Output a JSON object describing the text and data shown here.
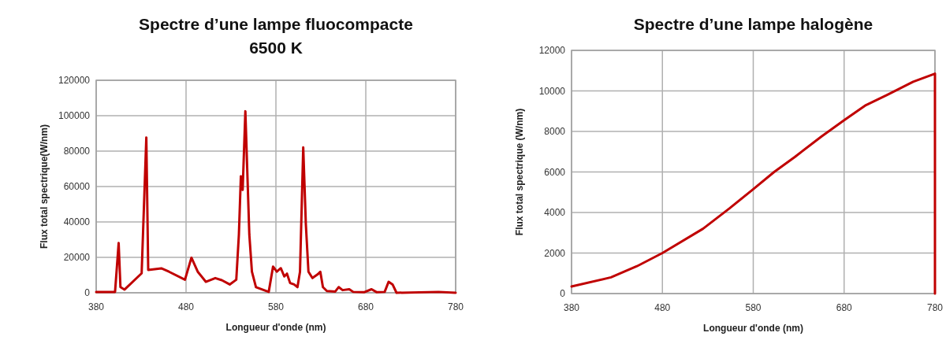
{
  "chart_data": [
    {
      "type": "line",
      "title": "Spectre d’une lampe fluocompacte\n6500 K",
      "xlabel": "Longueur d'onde (nm)",
      "ylabel": "Flux total spectrique(W/nm)",
      "xlim": [
        380,
        780
      ],
      "xticks": [
        380,
        480,
        580,
        680,
        780
      ],
      "ylim": [
        0,
        120000
      ],
      "yticks": [
        0,
        20000,
        40000,
        60000,
        80000,
        100000,
        120000
      ],
      "grid": true,
      "series": [
        {
          "color": "#c00000",
          "x": [
            380,
            401,
            405,
            407,
            411.6,
            430.6,
            435.8,
            437.9,
            452.5,
            461,
            478.8,
            486,
            493,
            502,
            512.5,
            519.8,
            528.6,
            535.9,
            538.8,
            541,
            543,
            546,
            550.4,
            553.3,
            557.8,
            572,
            576.8,
            581,
            585.5,
            589.3,
            592.3,
            595.8,
            600.2,
            604,
            606.8,
            610.4,
            613.3,
            616.2,
            620.6,
            626.5,
            629.4,
            632.3,
            636.7,
            646,
            649.8,
            654.2,
            661.6,
            666,
            678,
            686.4,
            692.3,
            701,
            705.4,
            709.8,
            714.2,
            761,
            780
          ],
          "values": [
            500,
            500,
            28100,
            3200,
            1800,
            11000,
            87700,
            12900,
            13800,
            11900,
            7400,
            19800,
            11900,
            6200,
            8300,
            7100,
            4700,
            7400,
            32900,
            65800,
            58100,
            102500,
            32900,
            11900,
            3200,
            500,
            14800,
            11900,
            13900,
            9200,
            10800,
            5500,
            4700,
            3200,
            11900,
            82100,
            38800,
            11900,
            8300,
            10400,
            11900,
            3200,
            1000,
            700,
            3200,
            1500,
            2000,
            500,
            300,
            2000,
            300,
            500,
            6200,
            4700,
            0,
            500,
            0
          ]
        }
      ]
    },
    {
      "type": "line",
      "title": "Spectre d’une lampe halogène",
      "xlabel": "Longueur d'onde (nm)",
      "ylabel": "Flux total spectrique (W/nm)",
      "xlim": [
        380,
        780
      ],
      "xticks": [
        380,
        480,
        580,
        680,
        780
      ],
      "ylim": [
        0,
        12000
      ],
      "yticks": [
        0,
        2000,
        4000,
        6000,
        8000,
        10000,
        12000
      ],
      "grid": true,
      "series": [
        {
          "color": "#c00000",
          "x": [
            380,
            423.4,
            452,
            480,
            524.7,
            553.7,
            580,
            603,
            626,
            655,
            680,
            704,
            727.3,
            756,
            780,
            780
          ],
          "values": [
            350,
            800,
            1350,
            2000,
            3200,
            4200,
            5150,
            6000,
            6750,
            7750,
            8550,
            9300,
            9800,
            10450,
            10850,
            0
          ]
        }
      ]
    }
  ]
}
